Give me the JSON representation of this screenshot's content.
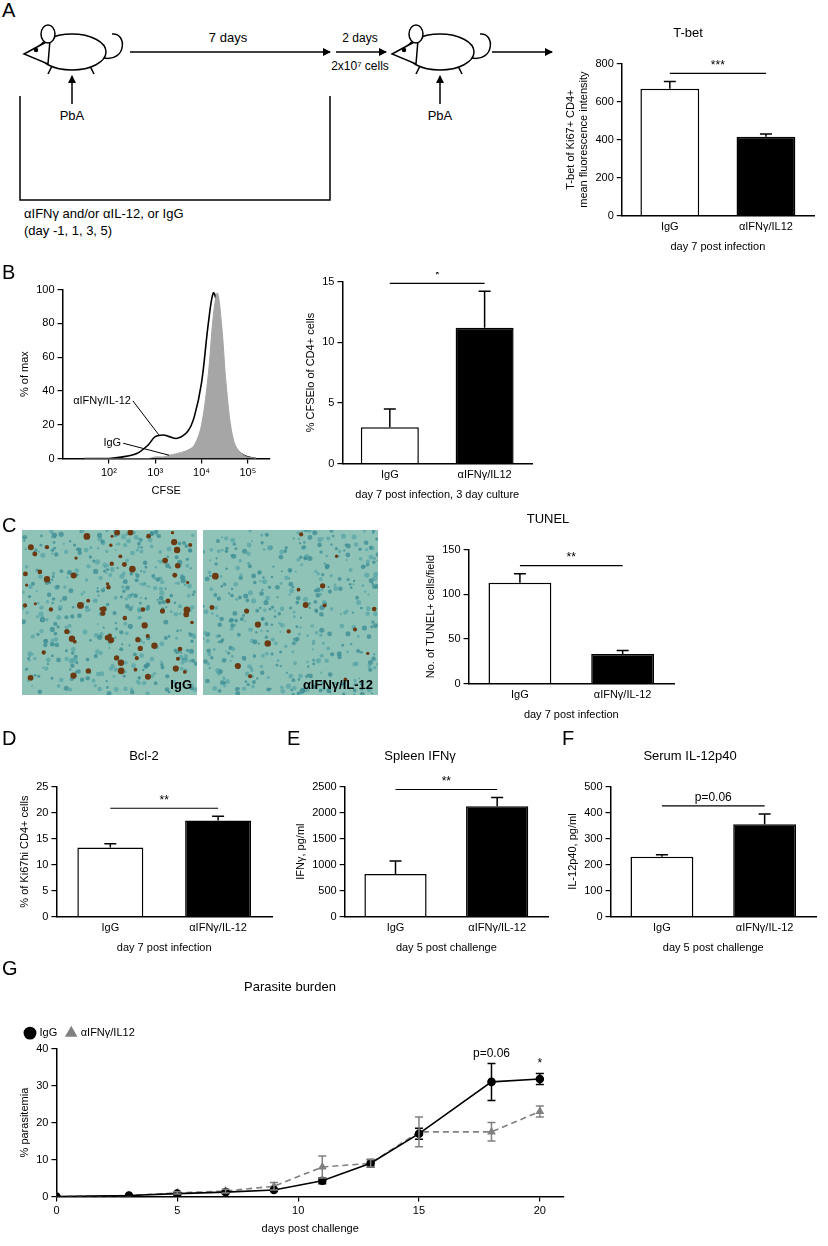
{
  "panels": [
    "A",
    "B",
    "C",
    "D",
    "E",
    "F",
    "G"
  ],
  "diagram": {
    "infection": "PbA",
    "first_interval": "7 days",
    "second_interval": "2 days",
    "transfer": "2x10⁷ cells",
    "treatment": "αIFNγ and/or αIL-12, or IgG",
    "schedule": "(day -1, 1, 3, 5)"
  },
  "micrographs": [
    {
      "label": "IgG"
    },
    {
      "label": "αIFNγ/IL-12"
    }
  ],
  "chart_data": [
    {
      "type": "bar",
      "title": "T-bet",
      "y_label": [
        "T-bet of Ki67+ CD4+",
        "mean fluorescence intensity"
      ],
      "x_label": "day 7 post infection",
      "categories": [
        "IgG",
        "αIFNγ/IL12"
      ],
      "values": [
        668,
        415
      ],
      "errors": [
        38,
        15
      ],
      "colors": [
        "#ffffff",
        "#000000"
      ],
      "ylim": [
        0,
        800
      ],
      "yticks": [
        0,
        200,
        400,
        600,
        800
      ],
      "annotations": [
        "***"
      ],
      "grid": false
    },
    {
      "type": "line",
      "x_label": "CFSE",
      "y_label": "% of max",
      "log": "x",
      "x": [
        30,
        100,
        200,
        400,
        700,
        1000,
        1500,
        2000,
        3000,
        5000,
        7000,
        10000,
        14000,
        18000,
        22000,
        27000,
        35000,
        50000,
        80000,
        150000
      ],
      "xlim": [
        10,
        300000
      ],
      "xticks": [
        {
          "value": 100,
          "label": "10²"
        },
        {
          "value": 1000,
          "label": "10³"
        },
        {
          "value": 10000,
          "label": "10⁴"
        },
        {
          "value": 100000,
          "label": "10⁵"
        }
      ],
      "ylim": [
        0,
        100
      ],
      "yticks": [
        0,
        20,
        40,
        60,
        80,
        100
      ],
      "series": [
        {
          "name": "IgG",
          "type": "area",
          "color": "#a6a6a6",
          "values": [
            0,
            0,
            0,
            0,
            0,
            1,
            1,
            2,
            3,
            5,
            8,
            20,
            50,
            85,
            98,
            80,
            40,
            10,
            2,
            0
          ]
        },
        {
          "name": "αIFNγ/IL-12",
          "type": "line",
          "color": "#000000",
          "values": [
            0,
            0,
            1,
            3,
            8,
            13,
            14,
            13,
            12,
            16,
            25,
            45,
            80,
            98,
            90,
            65,
            30,
            8,
            2,
            0
          ]
        }
      ],
      "annotations": [
        {
          "text": "αIFNγ/IL-12",
          "x": 1200,
          "y": 14
        },
        {
          "text": "IgG",
          "x": 2000,
          "y": 2
        }
      ],
      "grid": false
    },
    {
      "type": "bar",
      "y_label": "% CFSElo of CD4+ cells",
      "x_label": "day 7 post infection, 3 day culture",
      "categories": [
        "IgG",
        "αIFNγ/IL12"
      ],
      "values": [
        3,
        11.2
      ],
      "errors": [
        1.5,
        3
      ],
      "colors": [
        "#ffffff",
        "#000000"
      ],
      "ylim": [
        0,
        15
      ],
      "yticks": [
        0,
        5,
        10,
        15
      ],
      "annotations": [
        "*"
      ],
      "grid": false
    },
    {
      "type": "bar",
      "title": "TUNEL",
      "y_label": "No. of TUNEL+ cells/field",
      "x_label": "day 7 post infection",
      "categories": [
        "IgG",
        "αIFNγ/IL-12"
      ],
      "values": [
        113,
        33
      ],
      "errors": [
        10,
        4
      ],
      "colors": [
        "#ffffff",
        "#000000"
      ],
      "ylim": [
        0,
        150
      ],
      "yticks": [
        0,
        50,
        100,
        150
      ],
      "annotations": [
        "**"
      ],
      "grid": false
    },
    {
      "type": "bar",
      "title": "Bcl-2",
      "y_label": "% of Ki67hi CD4+ cells",
      "x_label": "day 7 post infection",
      "categories": [
        "IgG",
        "αIFNγ/IL-12"
      ],
      "values": [
        13.3,
        18.5
      ],
      "errors": [
        0.7,
        0.8
      ],
      "colors": [
        "#ffffff",
        "#000000"
      ],
      "ylim": [
        0,
        25
      ],
      "yticks": [
        0,
        5,
        10,
        15,
        20,
        25
      ],
      "annotations": [
        "**"
      ],
      "grid": false
    },
    {
      "type": "bar",
      "title": "Spleen IFNγ",
      "y_label": "IFNγ, pg/ml",
      "x_label": "day 5 post challenge",
      "categories": [
        "IgG",
        "αIFNγ/IL-12"
      ],
      "values": [
        820,
        2120
      ],
      "errors": [
        250,
        170
      ],
      "colors": [
        "#ffffff",
        "#000000"
      ],
      "ylim": [
        0,
        2500
      ],
      "yticks": [
        0,
        500,
        1000,
        1500,
        2000,
        2500
      ],
      "annotations": [
        "**"
      ],
      "grid": false
    },
    {
      "type": "bar",
      "title": "Serum IL-12p40",
      "y_label": "IL-12p40, pg/ml",
      "x_label": "day 5 post challenge",
      "categories": [
        "IgG",
        "αIFNγ/IL-12"
      ],
      "values": [
        230,
        355
      ],
      "errors": [
        8,
        40
      ],
      "colors": [
        "#ffffff",
        "#000000"
      ],
      "ylim": [
        0,
        500
      ],
      "yticks": [
        0,
        100,
        200,
        300,
        400,
        500
      ],
      "annotations": [
        "p=0.06"
      ],
      "grid": false
    },
    {
      "type": "line",
      "title": "Parasite burden",
      "x_label": "days post challenge",
      "y_label": "% parasitemia",
      "x": [
        0,
        3,
        5,
        7,
        9,
        11,
        13,
        15,
        18,
        20
      ],
      "xlim": [
        0,
        21
      ],
      "xticks": [
        0,
        5,
        10,
        15,
        20
      ],
      "ylim": [
        0,
        40
      ],
      "yticks": [
        0,
        10,
        20,
        30,
        40
      ],
      "series": [
        {
          "name": "IgG",
          "color": "#000000",
          "marker": "circle",
          "line_style": "solid",
          "values": [
            0,
            0.3,
            0.8,
            1.2,
            1.8,
            4.3,
            9,
            17,
            31,
            31.8
          ],
          "errors": [
            0,
            0,
            0,
            0,
            0.3,
            0.8,
            1,
            1.5,
            5,
            1.5
          ]
        },
        {
          "name": "αIFNγ/IL12",
          "color": "#808080",
          "marker": "triangle",
          "line_style": "dashed",
          "values": [
            0,
            0.3,
            1,
            1.5,
            2.8,
            8,
            9,
            17.5,
            17.5,
            23
          ],
          "errors": [
            0,
            0,
            0.3,
            0.5,
            1,
            3,
            1,
            4,
            2.5,
            1.5
          ]
        }
      ],
      "annotations": [
        {
          "text": "p=0.06",
          "x": 18
        },
        {
          "text": "*",
          "x": 20
        }
      ],
      "legend": "upper left",
      "grid": false
    }
  ]
}
